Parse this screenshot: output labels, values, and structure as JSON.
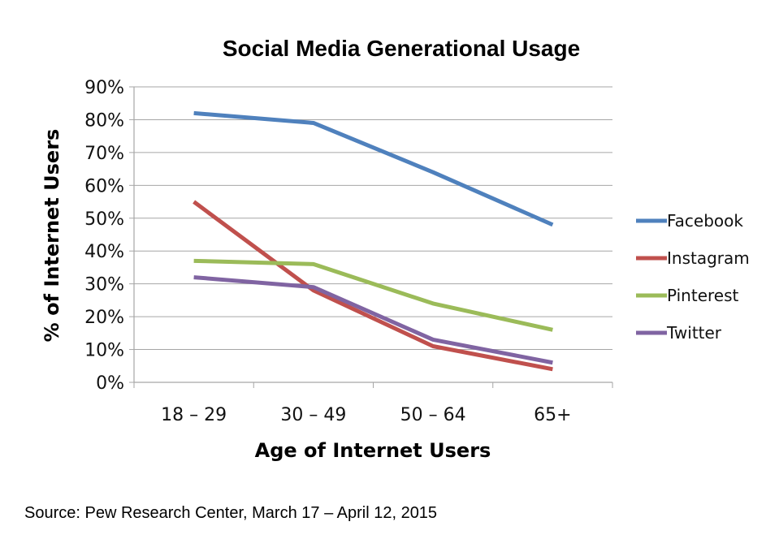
{
  "chart_data": {
    "type": "line",
    "title": "Social Media Generational Usage",
    "xlabel": "Age of Internet Users",
    "ylabel": "% of Internet Users",
    "categories": [
      "18 – 29",
      "30 – 49",
      "50 – 64",
      "65+"
    ],
    "ylim": [
      0,
      90
    ],
    "yticks": [
      "0%",
      "10%",
      "20%",
      "30%",
      "40%",
      "50%",
      "60%",
      "70%",
      "80%",
      "90%"
    ],
    "grid": true,
    "legend_position": "right",
    "series": [
      {
        "name": "Facebook",
        "color": "#4F81BD",
        "values": [
          82,
          79,
          64,
          48
        ]
      },
      {
        "name": "Instagram",
        "color": "#C0504D",
        "values": [
          55,
          28,
          11,
          4
        ]
      },
      {
        "name": "Pinterest",
        "color": "#9BBB59",
        "values": [
          37,
          36,
          24,
          16
        ]
      },
      {
        "name": "Twitter",
        "color": "#8064A2",
        "values": [
          32,
          29,
          13,
          6
        ]
      }
    ]
  },
  "source": "Source: Pew Research Center, March 17 – April 12, 2015"
}
